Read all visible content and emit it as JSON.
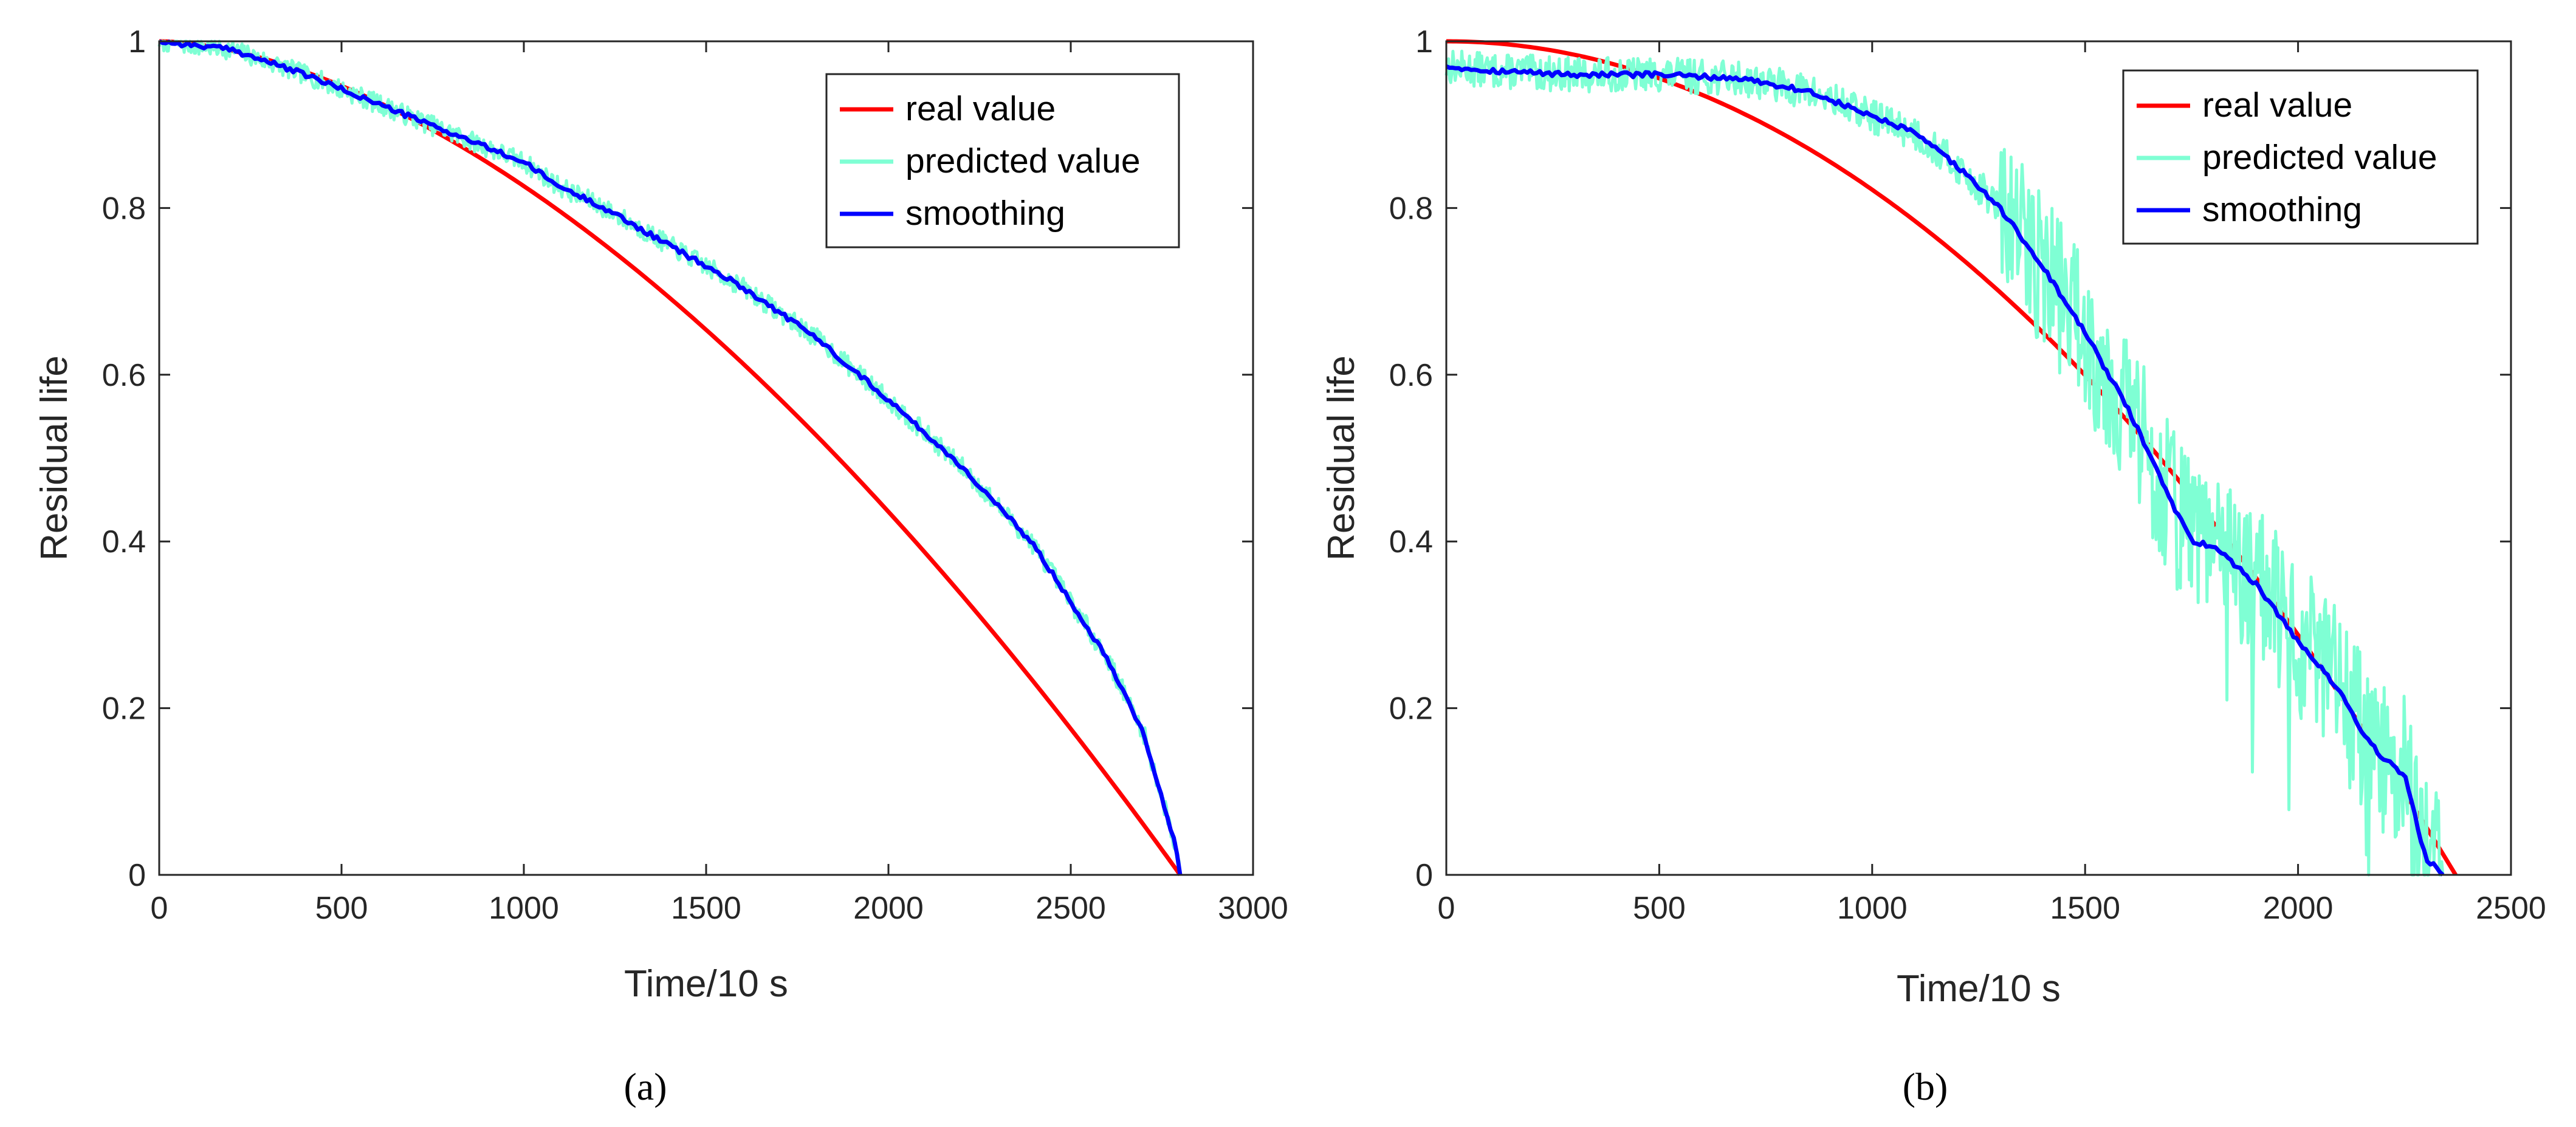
{
  "colors": {
    "real": "#ff0000",
    "predicted": "#7fffd4",
    "smoothing": "#0000ff",
    "axis": "#262626"
  },
  "chart_data": [
    {
      "id": "a",
      "caption": "(a)",
      "type": "line",
      "xlabel": "Time/10 s",
      "ylabel": "Residual life",
      "xlim": [
        0,
        3000
      ],
      "ylim": [
        0,
        1
      ],
      "xticks": [
        0,
        500,
        1000,
        1500,
        2000,
        2500,
        3000
      ],
      "yticks": [
        0,
        0.2,
        0.4,
        0.6,
        0.8,
        1
      ],
      "ytick_labels": [
        "0",
        "0.2",
        "0.4",
        "0.6",
        "0.8",
        "1"
      ],
      "legend": {
        "position": "top-right",
        "entries": [
          "real value",
          "predicted value",
          "smoothing"
        ]
      },
      "series": [
        {
          "name": "real value",
          "color": "#ff0000",
          "model": {
            "kind": "power",
            "end": 2800,
            "exponent": 1.7
          }
        },
        {
          "name": "predicted value",
          "color": "#7fffd4",
          "noise": 0.012,
          "seed": 7,
          "x": [
            0,
            200,
            400,
            600,
            800,
            1000,
            1100,
            1200,
            1400,
            1600,
            1800,
            2000,
            2200,
            2400,
            2600,
            2700,
            2790,
            2800
          ],
          "y": [
            1.0,
            0.99,
            0.96,
            0.925,
            0.89,
            0.855,
            0.825,
            0.805,
            0.755,
            0.705,
            0.645,
            0.57,
            0.49,
            0.395,
            0.26,
            0.17,
            0.03,
            0.0
          ]
        },
        {
          "name": "smoothing",
          "color": "#0000ff",
          "x": [
            0,
            200,
            400,
            600,
            800,
            1000,
            1100,
            1200,
            1400,
            1600,
            1800,
            2000,
            2200,
            2400,
            2600,
            2700,
            2790,
            2800
          ],
          "y": [
            1.0,
            0.99,
            0.96,
            0.925,
            0.89,
            0.855,
            0.825,
            0.805,
            0.755,
            0.705,
            0.645,
            0.57,
            0.49,
            0.395,
            0.26,
            0.17,
            0.03,
            0.0
          ]
        }
      ]
    },
    {
      "id": "b",
      "caption": "(b)",
      "type": "line",
      "xlabel": "Time/10 s",
      "ylabel": "Residual life",
      "xlim": [
        0,
        2500
      ],
      "ylim": [
        0,
        1
      ],
      "xticks": [
        0,
        500,
        1000,
        1500,
        2000,
        2500
      ],
      "yticks": [
        0,
        0.2,
        0.4,
        0.6,
        0.8,
        1
      ],
      "ytick_labels": [
        "0",
        "0.2",
        "0.4",
        "0.6",
        "0.8",
        "1"
      ],
      "legend": {
        "position": "top-right",
        "entries": [
          "real value",
          "predicted value",
          "smoothing"
        ]
      },
      "series": [
        {
          "name": "real value",
          "color": "#ff0000",
          "model": {
            "kind": "power",
            "end": 2370,
            "exponent": 2.0
          }
        },
        {
          "name": "predicted value",
          "color": "#7fffd4",
          "noise": 0.06,
          "seed": 13,
          "x": [
            0,
            100,
            300,
            500,
            700,
            850,
            1000,
            1100,
            1200,
            1300,
            1400,
            1500,
            1600,
            1700,
            1750,
            1800,
            1900,
            2000,
            2100,
            2150,
            2200,
            2250,
            2300,
            2340
          ],
          "y": [
            0.97,
            0.965,
            0.96,
            0.96,
            0.955,
            0.94,
            0.91,
            0.89,
            0.85,
            0.8,
            0.73,
            0.65,
            0.56,
            0.45,
            0.4,
            0.395,
            0.35,
            0.28,
            0.22,
            0.17,
            0.14,
            0.12,
            0.02,
            0.0
          ]
        },
        {
          "name": "smoothing",
          "color": "#0000ff",
          "x": [
            0,
            100,
            300,
            500,
            700,
            850,
            1000,
            1100,
            1200,
            1300,
            1400,
            1500,
            1600,
            1700,
            1750,
            1800,
            1900,
            2000,
            2100,
            2150,
            2200,
            2250,
            2300,
            2340
          ],
          "y": [
            0.97,
            0.965,
            0.96,
            0.96,
            0.955,
            0.94,
            0.91,
            0.89,
            0.85,
            0.8,
            0.73,
            0.65,
            0.56,
            0.45,
            0.4,
            0.395,
            0.35,
            0.28,
            0.22,
            0.17,
            0.14,
            0.12,
            0.02,
            0.0
          ]
        }
      ]
    }
  ]
}
